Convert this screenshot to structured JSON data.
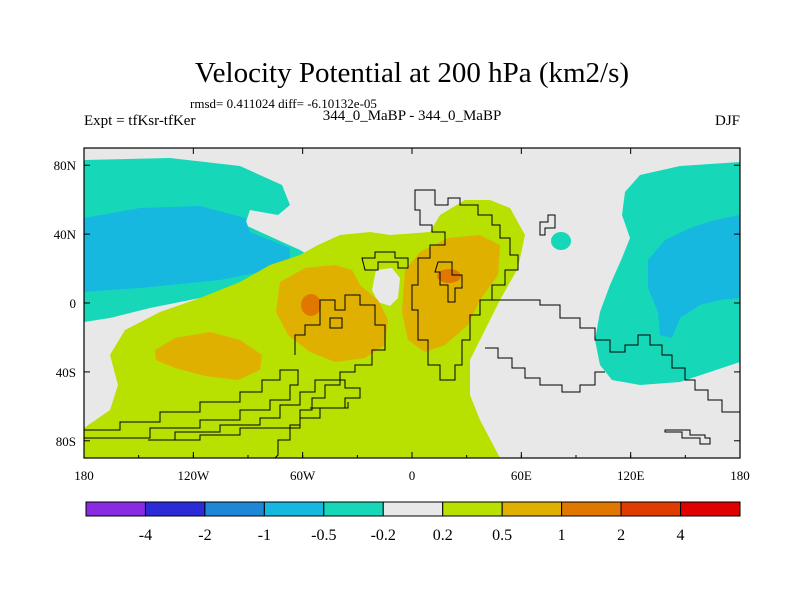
{
  "chart_data": {
    "type": "heatmap",
    "title": "Velocity Potential at 200 hPa (km2/s)",
    "stats": "rmsd= 0.411024 diff= -6.10132e-05",
    "left_label": "Expt = tfKsr-tfKer",
    "center_label": "344_0_MaBP - 344_0_MaBP",
    "right_label": "DJF",
    "x_ticks": [
      "180",
      "120W",
      "60W",
      "0",
      "60E",
      "120E",
      "180"
    ],
    "y_ticks": [
      "80N",
      "40N",
      "0",
      "40S",
      "80S"
    ],
    "lon_range": [
      -180,
      180
    ],
    "lat_range": [
      -90,
      90
    ],
    "colorbar": {
      "levels": [
        "-4",
        "-2",
        "-1",
        "-0.5",
        "-0.2",
        "0.2",
        "0.5",
        "1",
        "2",
        "4"
      ],
      "colors": [
        "#8a2be2",
        "#2b2bd8",
        "#1e88d8",
        "#16b8e0",
        "#16d8b8",
        "#e8e8e8",
        "#b8e000",
        "#e0b000",
        "#e07800",
        "#e03c00",
        "#e00000"
      ]
    }
  }
}
